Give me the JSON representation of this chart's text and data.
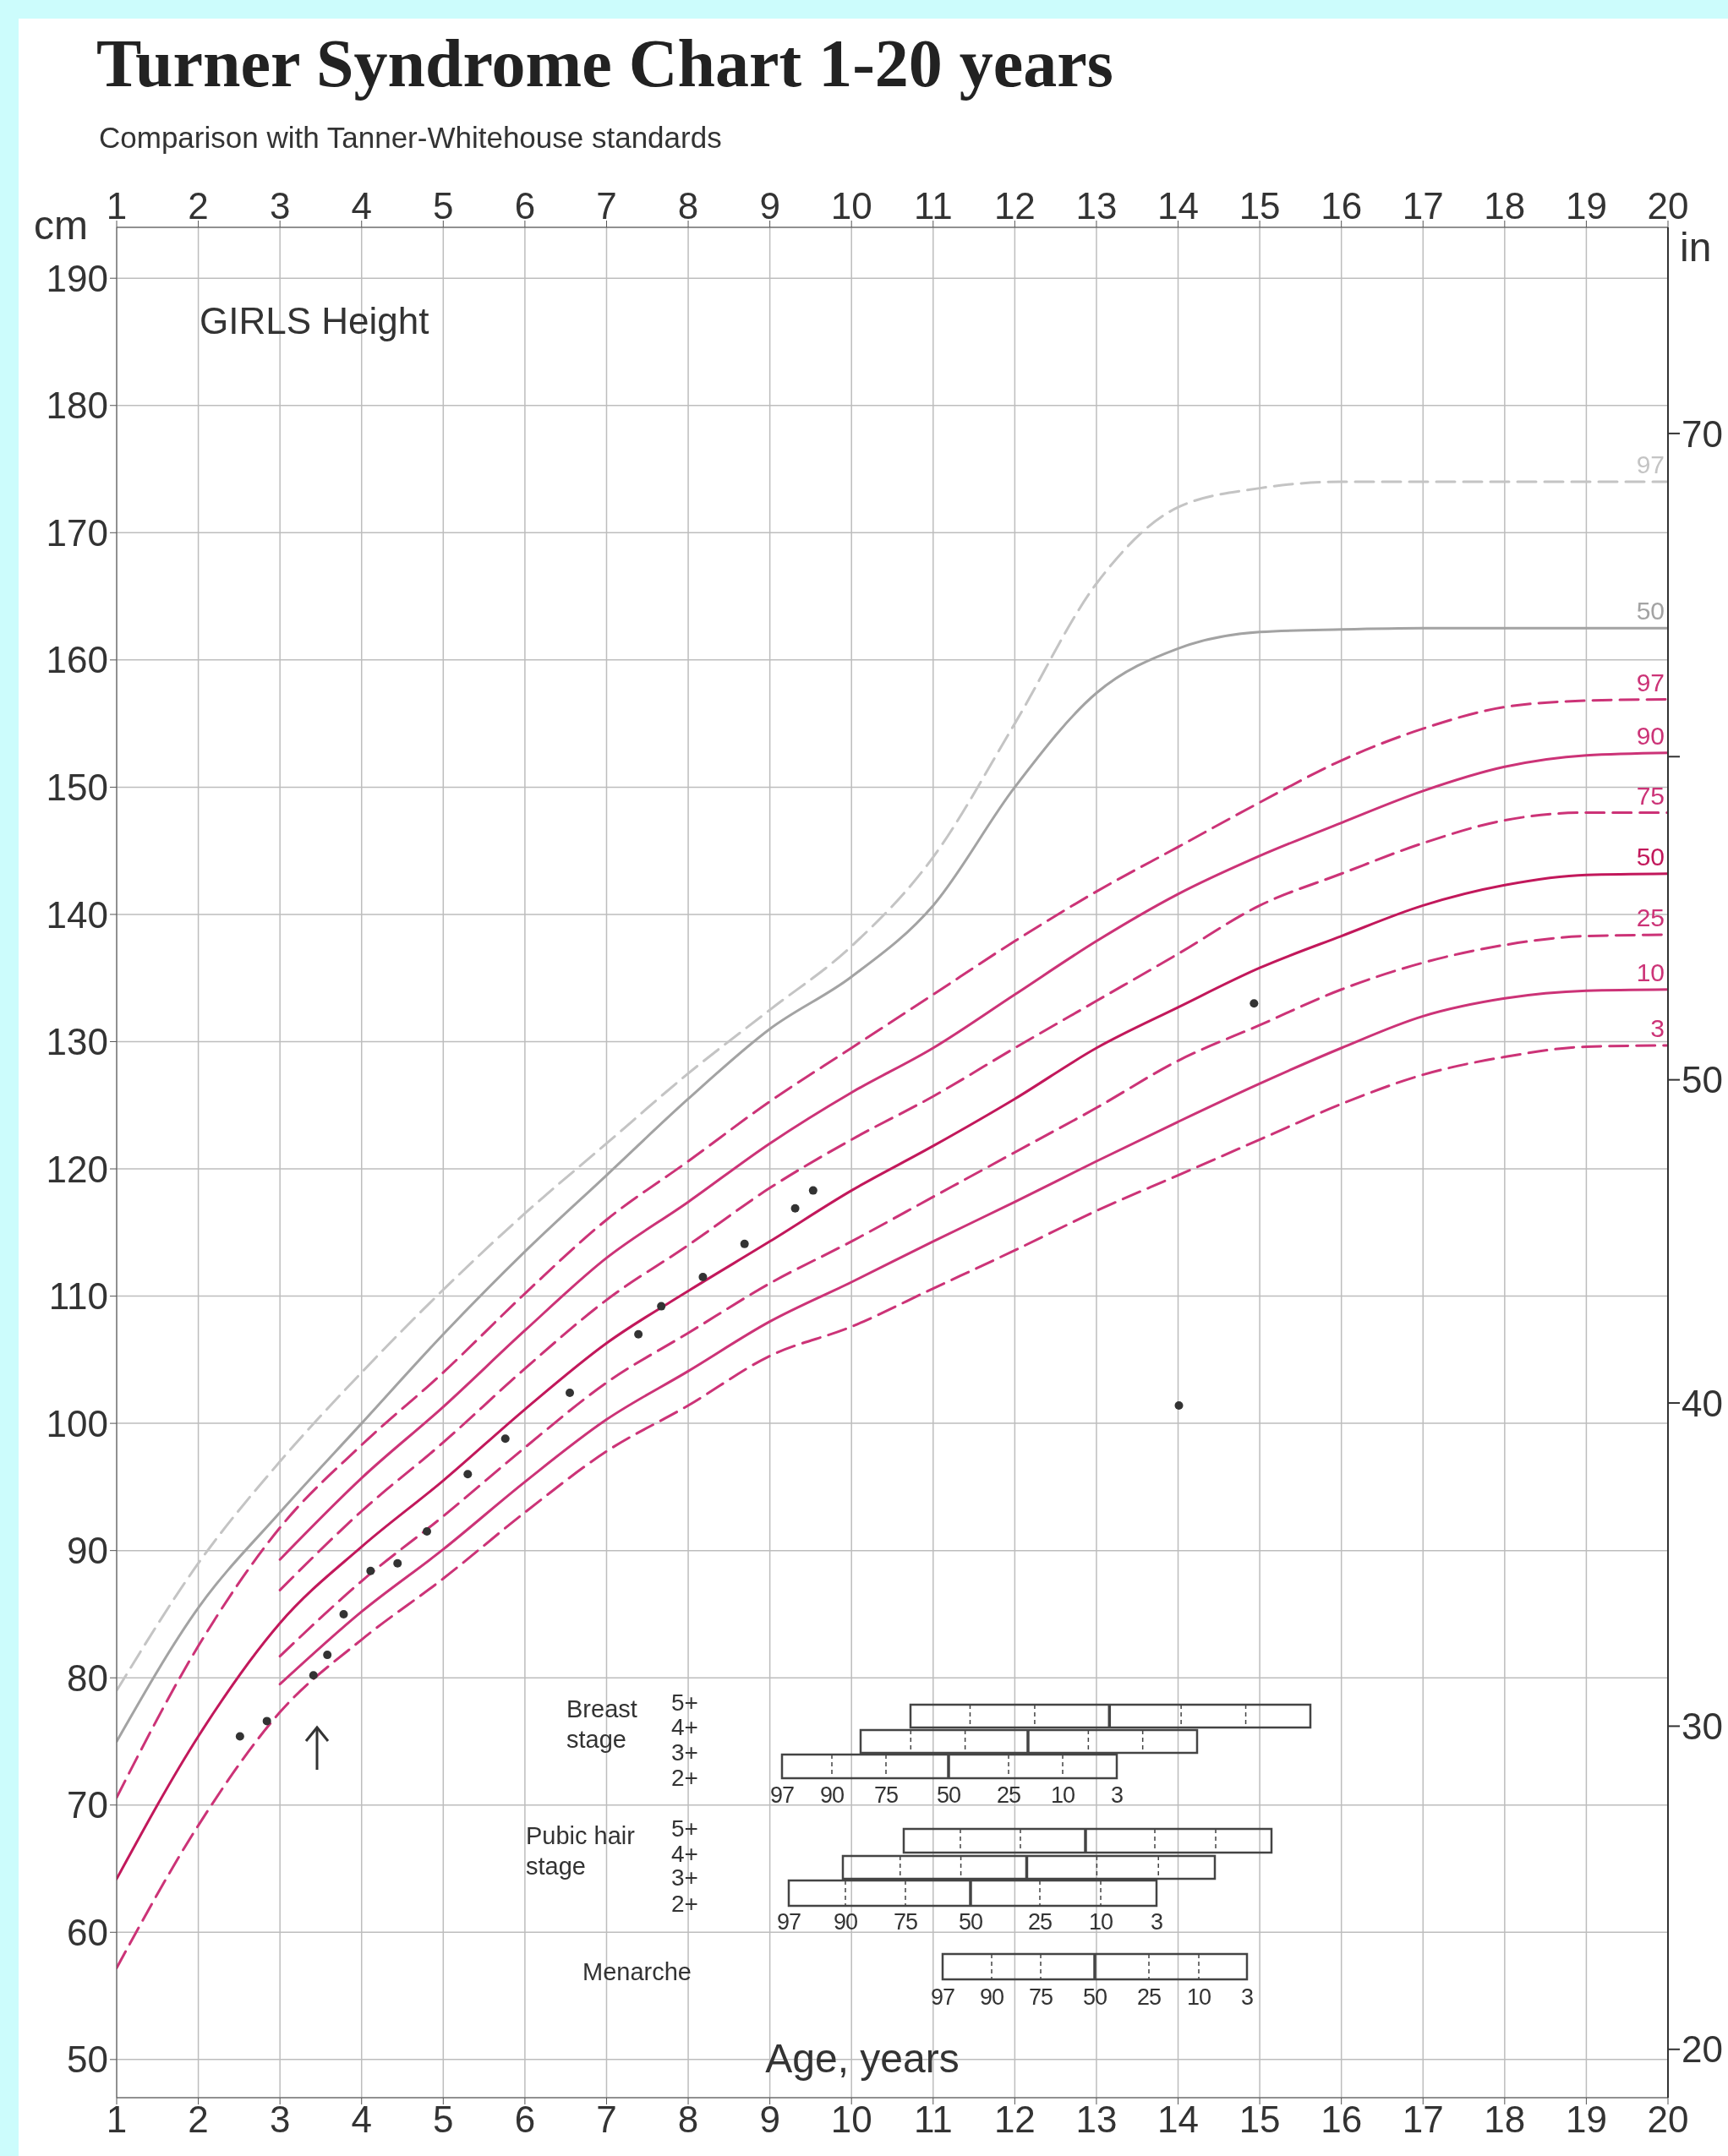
{
  "chart_data": {
    "type": "line",
    "title": "Turner Syndrome Chart 1-20 years",
    "subtitle": "Comparison with Tanner-Whitehouse standards",
    "xlabel": "Age, years",
    "ylabel": "cm",
    "y2label": "in",
    "xlim": [
      1,
      20
    ],
    "xticks": [
      1,
      2,
      3,
      4,
      5,
      6,
      7,
      8,
      9,
      10,
      11,
      12,
      13,
      14,
      15,
      16,
      17,
      18,
      19,
      20
    ],
    "x2lim": [
      1,
      20
    ],
    "x2ticks": [
      1,
      2,
      3,
      4,
      5,
      6,
      7,
      8,
      9,
      10,
      11,
      12,
      13,
      14,
      15,
      16,
      17,
      18,
      19,
      20
    ],
    "ylim": [
      47,
      194
    ],
    "yticks": [
      50,
      60,
      70,
      80,
      90,
      100,
      110,
      120,
      130,
      140,
      150,
      160,
      170,
      180,
      190
    ],
    "y2lim": [
      18.504,
      76.378
    ],
    "y2ticks": [
      20,
      30,
      40,
      50,
      {
        "value": 60,
        "label": null
      },
      70
    ],
    "grid": true,
    "marker": "none",
    "series": [
      {
        "name": "97",
        "color": "#c4c4c4",
        "line_style": "dashed",
        "x": [
          1,
          2,
          3,
          4,
          5,
          6,
          7,
          8,
          9,
          10,
          11,
          12,
          13,
          14,
          15,
          16,
          17,
          18,
          19,
          20
        ],
        "values": [
          79,
          89,
          97,
          104,
          110.5,
          116.5,
          122,
          127.5,
          132.5,
          137.5,
          144.5,
          155,
          166,
          172,
          173.5,
          174,
          174,
          174,
          174,
          174
        ]
      },
      {
        "name": "50",
        "color": "#a3a3a3",
        "line_style": "solid",
        "x": [
          1,
          2,
          3,
          4,
          5,
          6,
          7,
          8,
          9,
          10,
          11,
          12,
          13,
          14,
          15,
          16,
          17,
          18,
          19,
          20
        ],
        "values": [
          75,
          85.5,
          93,
          100,
          107,
          113.5,
          119.5,
          125.5,
          131,
          135.1,
          140.7,
          150,
          157.4,
          160.9,
          162.2,
          162.4,
          162.5,
          162.5,
          162.5,
          162.5
        ]
      },
      {
        "name": "97",
        "color": "#cc3377",
        "line_style": "dashed",
        "x": [
          1,
          2,
          3,
          4,
          5,
          6,
          7,
          8,
          9,
          10,
          11,
          12,
          13,
          14,
          15,
          16,
          17,
          18,
          19,
          20
        ],
        "values": [
          70.6,
          82.5,
          91.8,
          98.3,
          104,
          110.2,
          116,
          120.6,
          125.3,
          129.5,
          133.7,
          137.9,
          141.8,
          145.3,
          148.8,
          152.1,
          154.6,
          156.3,
          156.8,
          156.9
        ]
      },
      {
        "name": "90",
        "color": "#cc3377",
        "line_style": "solid",
        "x": [
          3,
          4,
          5,
          6,
          7,
          8,
          9,
          10,
          11,
          12,
          13,
          14,
          15,
          16,
          17,
          18,
          19,
          20
        ],
        "values": [
          89.3,
          95.7,
          101.3,
          107.3,
          113,
          117.4,
          122,
          126,
          129.5,
          133.7,
          137.9,
          141.6,
          144.6,
          147.2,
          149.7,
          151.6,
          152.5,
          152.7
        ]
      },
      {
        "name": "75",
        "color": "#cc3377",
        "line_style": "dashed",
        "x": [
          3,
          4,
          5,
          6,
          7,
          8,
          9,
          10,
          11,
          12,
          13,
          14,
          15,
          16,
          17,
          18,
          19,
          20
        ],
        "values": [
          86.9,
          93.1,
          98.5,
          104.3,
          109.7,
          114,
          118.5,
          122.3,
          125.7,
          129.5,
          133.2,
          136.9,
          140.7,
          143.2,
          145.6,
          147.4,
          148,
          148
        ]
      },
      {
        "name": "50",
        "color": "#c2185b",
        "line_style": "solid",
        "x": [
          1,
          2,
          3,
          4,
          5,
          6,
          7,
          8,
          9,
          10,
          11,
          12,
          13,
          14,
          15,
          16,
          17,
          18,
          19,
          20
        ],
        "values": [
          64.2,
          75.4,
          84.3,
          90.3,
          95.5,
          101.1,
          106.3,
          110.4,
          114.3,
          118.3,
          121.8,
          125.5,
          129.5,
          132.7,
          135.8,
          138.3,
          140.7,
          142.3,
          143.1,
          143.2
        ]
      },
      {
        "name": "25",
        "color": "#cc3377",
        "line_style": "dashed",
        "x": [
          3,
          4,
          5,
          6,
          7,
          8,
          9,
          10,
          11,
          12,
          13,
          14,
          15,
          16,
          17,
          18,
          19,
          20
        ],
        "values": [
          81.7,
          87.6,
          92.7,
          98.1,
          103.2,
          107.1,
          111,
          114.3,
          117.8,
          121.3,
          124.8,
          128.5,
          131.3,
          134.1,
          136.2,
          137.6,
          138.3,
          138.4
        ]
      },
      {
        "name": "10",
        "color": "#cc3377",
        "line_style": "solid",
        "x": [
          3,
          4,
          5,
          6,
          7,
          8,
          9,
          10,
          11,
          12,
          13,
          14,
          15,
          16,
          17,
          18,
          19,
          20
        ],
        "values": [
          79.5,
          85.2,
          90.1,
          95.4,
          100.3,
          104.1,
          108,
          111.1,
          114.3,
          117.4,
          120.6,
          123.7,
          126.7,
          129.5,
          132,
          133.4,
          134,
          134.1
        ]
      },
      {
        "name": "3",
        "color": "#cc3377",
        "line_style": "dashed",
        "x": [
          1,
          2,
          3,
          4,
          5,
          6,
          7,
          8,
          9,
          10,
          11,
          12,
          13,
          14,
          15,
          16,
          17,
          18,
          19,
          20
        ],
        "values": [
          57.2,
          68.4,
          77.3,
          83,
          87.8,
          93,
          97.8,
          101.4,
          105.3,
          107.6,
          110.6,
          113.6,
          116.7,
          119.5,
          122.3,
          125.1,
          127.4,
          128.8,
          129.6,
          129.7
        ]
      },
      {
        "type": "scatter",
        "color": "#333333",
        "marker": "circle",
        "x": [
          2.51,
          2.84,
          3.41,
          3.58,
          3.78,
          4.11,
          4.44,
          4.8,
          5.3,
          5.76,
          6.55,
          7.39,
          7.67,
          8.18,
          8.69,
          9.31,
          9.53,
          14.01,
          14.93
        ],
        "values": [
          75.4,
          76.6,
          80.2,
          81.8,
          85,
          88.4,
          89,
          91.5,
          96,
          98.8,
          102.4,
          107,
          109.2,
          111.5,
          114.1,
          116.9,
          118.3,
          101.4,
          133
        ]
      }
    ],
    "annotations": [
      "GIRLS Height",
      "Breast stage",
      "5+",
      "4+",
      "3+",
      "2+",
      "97",
      "90",
      "75",
      "50",
      "25",
      "10",
      "3",
      "Pubic hair stage",
      "5+",
      "4+",
      "3+",
      "2+",
      "97",
      "90",
      "75",
      "50",
      "25",
      "10",
      "3",
      "Menarche",
      "97",
      "90",
      "75",
      "50",
      "25",
      "10",
      "3"
    ]
  }
}
